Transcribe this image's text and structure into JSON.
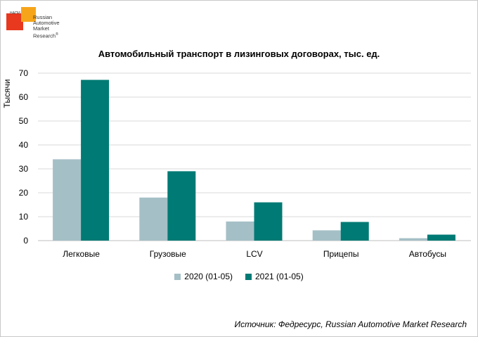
{
  "logo": {
    "small_text": "НАПИ",
    "brand_lines": [
      "Russian",
      "Automotive",
      "Market",
      "Research"
    ],
    "registered": "®"
  },
  "chart_data": {
    "type": "bar",
    "title": "Автомобильный транспорт в лизинговых договорах, тыс. ед.",
    "ylabel": "Тысячи",
    "xlabel": "",
    "categories": [
      "Легковые",
      "Грузовые",
      "LCV",
      "Прицепы",
      "Автобусы"
    ],
    "series": [
      {
        "name": "2020 (01-05)",
        "color": "#a5bfc6",
        "values": [
          34,
          18,
          8,
          4.3,
          1
        ]
      },
      {
        "name": "2021 (01-05)",
        "color": "#007a74",
        "values": [
          67.2,
          29,
          16,
          7.8,
          2.5
        ]
      }
    ],
    "ylim": [
      0,
      70
    ],
    "yticks": [
      0,
      10,
      20,
      30,
      40,
      50,
      60,
      70
    ],
    "grid": true,
    "legend_position": "bottom"
  },
  "source": "Источник: Федресурс, Russian Automotive Market Research"
}
